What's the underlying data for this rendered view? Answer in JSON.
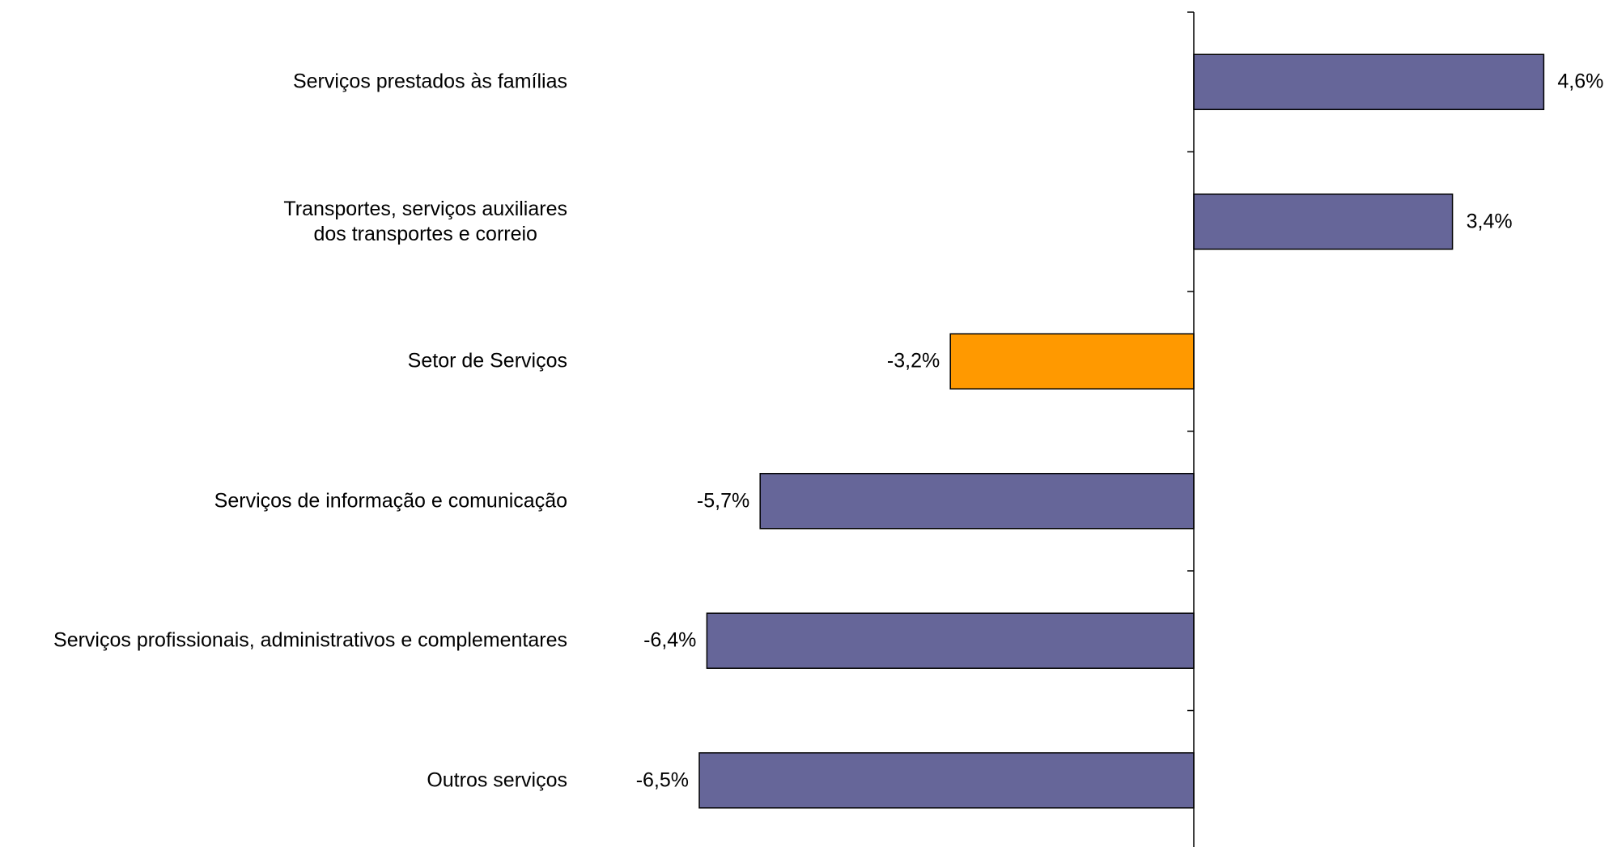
{
  "chart_data": {
    "type": "barh",
    "categories": [
      "Serviços prestados às famílias",
      "Transportes, serviços auxiliares\ndos transportes e correio",
      "Setor de Serviços",
      "Serviços de informação e comunicação",
      "Serviços profissionais, administrativos  e complementares",
      "Outros serviços"
    ],
    "values": [
      4.6,
      3.4,
      -3.2,
      -5.7,
      -6.4,
      -6.5
    ],
    "value_labels": [
      "4,6%",
      "3,4%",
      "-3,2%",
      "-5,7%",
      "-6,4%",
      "-6,5%"
    ],
    "colors": [
      "#666699",
      "#666699",
      "#ff9900",
      "#666699",
      "#666699",
      "#666699"
    ]
  }
}
